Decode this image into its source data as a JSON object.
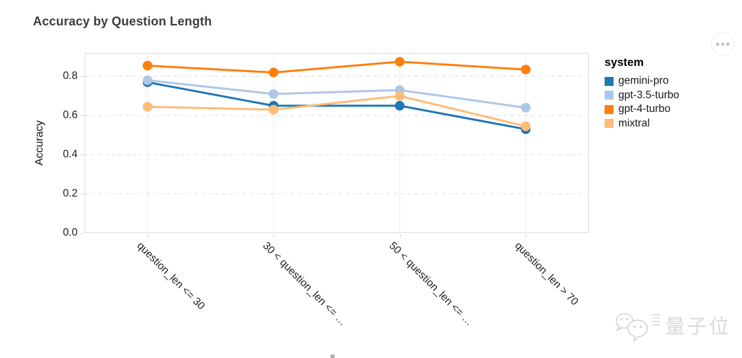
{
  "header": {
    "title": "Accuracy by Question Length"
  },
  "actions_button": {
    "icon": "ellipsis-menu"
  },
  "chart_data": {
    "type": "line",
    "title": "Accuracy by Question Length",
    "categories": [
      "question_len <= 30",
      "30 < question_len <= …",
      "50 < question_len <= …",
      "question_len > 70"
    ],
    "series": [
      {
        "name": "gemini-pro",
        "color": "#1f77b4",
        "values": [
          0.77,
          0.65,
          0.65,
          0.53
        ]
      },
      {
        "name": "gpt-3.5-turbo",
        "color": "#aec7e8",
        "values": [
          0.78,
          0.71,
          0.73,
          0.64
        ]
      },
      {
        "name": "gpt-4-turbo",
        "color": "#ff7f0e",
        "values": [
          0.855,
          0.82,
          0.875,
          0.835
        ]
      },
      {
        "name": "mixtral",
        "color": "#ffbb78",
        "values": [
          0.645,
          0.63,
          0.7,
          0.545
        ]
      }
    ],
    "xlabel": "",
    "ylabel": "Accuracy",
    "ylim": [
      0,
      0.92
    ],
    "yticks": [
      0.0,
      0.2,
      0.4,
      0.6,
      0.8
    ],
    "grid": "horizontal-dashed",
    "legend_title": "system",
    "legend_position": "right"
  },
  "watermark": {
    "icon": "wechat-chat-bubbles",
    "text": "量子位"
  }
}
